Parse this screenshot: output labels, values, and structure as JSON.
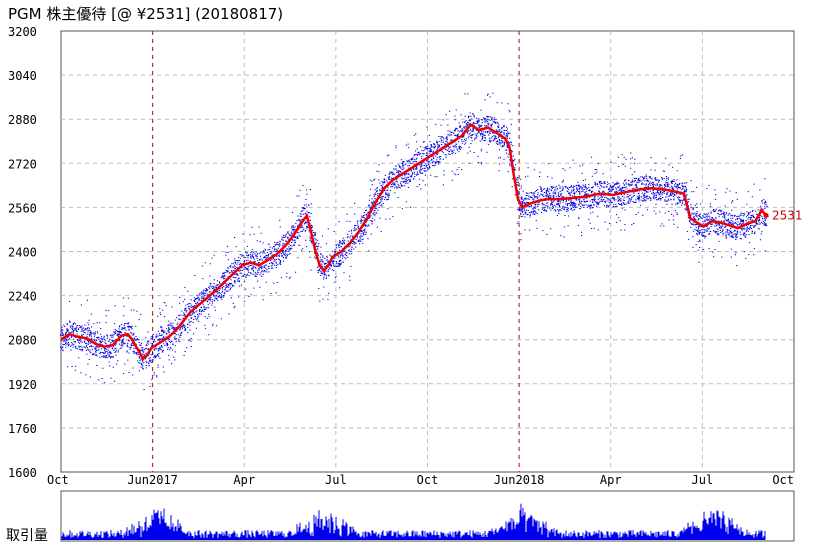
{
  "chart_data": {
    "type": "line",
    "title": "PGM 株主優待  [@ ¥2531] (20180817)",
    "ylim": [
      1600,
      3200
    ],
    "yticks": [
      1600,
      1760,
      1920,
      2080,
      2240,
      2400,
      2560,
      2720,
      2880,
      3040,
      3200
    ],
    "xticks": [
      "Oct",
      "Jun2017",
      "Apr",
      "Jul",
      "Oct",
      "Jun2018",
      "Apr",
      "Jul",
      "Oct"
    ],
    "last_value_label": "2531",
    "volume_label": "取引量",
    "grid": true,
    "colors": {
      "line": "#ee0000",
      "scatter": "#0000dd",
      "volume": "#0000ee",
      "marker": "#cc0000",
      "grid": "#bbbbbb"
    },
    "series": [
      {
        "values": [
          [
            0,
            2080
          ],
          [
            4,
            2100
          ],
          [
            8,
            2090
          ],
          [
            12,
            2085
          ],
          [
            16,
            2065
          ],
          [
            20,
            2055
          ],
          [
            24,
            2060
          ],
          [
            28,
            2095
          ],
          [
            31,
            2100
          ],
          [
            33,
            2080
          ],
          [
            36,
            2040
          ],
          [
            38,
            2010
          ],
          [
            40,
            2025
          ],
          [
            42,
            2050
          ],
          [
            46,
            2070
          ],
          [
            50,
            2090
          ],
          [
            54,
            2120
          ],
          [
            60,
            2180
          ],
          [
            66,
            2220
          ],
          [
            72,
            2260
          ],
          [
            76,
            2290
          ],
          [
            80,
            2320
          ],
          [
            84,
            2350
          ],
          [
            88,
            2360
          ],
          [
            92,
            2350
          ],
          [
            96,
            2370
          ],
          [
            100,
            2390
          ],
          [
            104,
            2420
          ],
          [
            108,
            2460
          ],
          [
            112,
            2510
          ],
          [
            114,
            2530
          ],
          [
            116,
            2470
          ],
          [
            118,
            2400
          ],
          [
            120,
            2350
          ],
          [
            122,
            2330
          ],
          [
            124,
            2350
          ],
          [
            126,
            2380
          ],
          [
            130,
            2400
          ],
          [
            134,
            2430
          ],
          [
            138,
            2470
          ],
          [
            142,
            2520
          ],
          [
            146,
            2580
          ],
          [
            150,
            2630
          ],
          [
            154,
            2660
          ],
          [
            158,
            2680
          ],
          [
            162,
            2700
          ],
          [
            166,
            2720
          ],
          [
            170,
            2740
          ],
          [
            174,
            2760
          ],
          [
            178,
            2780
          ],
          [
            182,
            2800
          ],
          [
            186,
            2820
          ],
          [
            190,
            2860
          ],
          [
            194,
            2840
          ],
          [
            198,
            2850
          ],
          [
            202,
            2830
          ],
          [
            206,
            2810
          ],
          [
            208,
            2780
          ],
          [
            210,
            2680
          ],
          [
            212,
            2590
          ],
          [
            214,
            2560
          ],
          [
            218,
            2575
          ],
          [
            222,
            2585
          ],
          [
            226,
            2590
          ],
          [
            232,
            2590
          ],
          [
            238,
            2595
          ],
          [
            244,
            2600
          ],
          [
            250,
            2610
          ],
          [
            256,
            2605
          ],
          [
            262,
            2615
          ],
          [
            268,
            2625
          ],
          [
            274,
            2630
          ],
          [
            280,
            2625
          ],
          [
            286,
            2615
          ],
          [
            289,
            2610
          ],
          [
            292,
            2520
          ],
          [
            296,
            2500
          ],
          [
            298,
            2490
          ],
          [
            302,
            2510
          ],
          [
            306,
            2505
          ],
          [
            310,
            2495
          ],
          [
            314,
            2485
          ],
          [
            318,
            2500
          ],
          [
            322,
            2510
          ],
          [
            325,
            2550
          ],
          [
            327,
            2531
          ]
        ]
      }
    ],
    "volume_spikes_at": [
      0.13,
      0.36,
      0.63,
      0.89
    ]
  }
}
